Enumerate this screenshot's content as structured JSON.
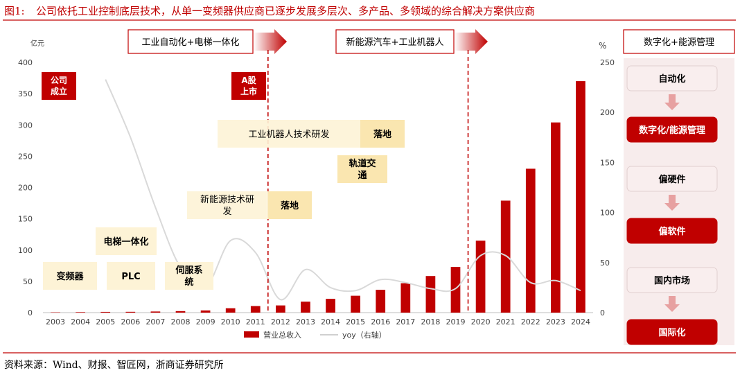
{
  "figure_label": "图1:",
  "figure_title": "公司依托工业控制底层技术，从单一变频器供应商已逐步发展多层次、多产品、多领域的综合解决方案供应商",
  "source": "资料来源：Wind、财报、智匠网，浙商证券研究所",
  "top_banners": [
    "工业自动化+电梯一体化",
    "新能源汽车+工业机器人"
  ],
  "annotations": {
    "company_founded": "公司\n成立",
    "a_share_listing": "A股\n上市",
    "industrial_robot_rd": "工业机器人技术研发",
    "landing_1": "落地",
    "rail_transit": "轨道交\n通",
    "new_energy_rd": "新能源技术研\n发",
    "landing_2": "落地",
    "elevator": "电梯一体化",
    "inverter": "变频器",
    "plc": "PLC",
    "servo": "伺服系\n统"
  },
  "right_panel": {
    "header": "数字化+能源管理",
    "items": [
      {
        "label": "自动化",
        "style": "light"
      },
      {
        "label": "数字化/能源管理",
        "style": "dark"
      },
      {
        "label": "偏硬件",
        "style": "light"
      },
      {
        "label": "偏软件",
        "style": "dark"
      },
      {
        "label": "国内市场",
        "style": "light"
      },
      {
        "label": "国际化",
        "style": "dark"
      }
    ]
  },
  "colors": {
    "bar": "#c00000",
    "line": "#d9d9d9",
    "accent": "#c00000",
    "tan": "#fdf3d6",
    "pink": "#f7ecec"
  },
  "chart_data": {
    "type": "bar",
    "categories": [
      "2003",
      "2004",
      "2005",
      "2006",
      "2007",
      "2008",
      "2009",
      "2010",
      "2011",
      "2012",
      "2013",
      "2014",
      "2015",
      "2016",
      "2017",
      "2018",
      "2019",
      "2020",
      "2021",
      "2022",
      "2023",
      "2024"
    ],
    "series": [
      {
        "name": "营业总收入",
        "type": "bar",
        "axis": "left",
        "values": [
          0.5,
          0.8,
          1.2,
          1.3,
          1.8,
          2.4,
          3.5,
          7,
          10.5,
          11.5,
          17.5,
          22,
          27,
          36.5,
          47,
          58.5,
          73,
          115,
          179,
          230,
          304,
          370
        ]
      },
      {
        "name": "yoy（右轴）",
        "type": "line",
        "axis": "right",
        "values": [
          null,
          null,
          233,
          175,
          105,
          45,
          25,
          72,
          60,
          13,
          43,
          25,
          22,
          33,
          30,
          24,
          24,
          57,
          57,
          30,
          32,
          22
        ]
      }
    ],
    "yleft_unit": "亿元",
    "yleft_ticks": [
      0,
      50,
      100,
      150,
      200,
      250,
      300,
      350,
      400
    ],
    "ylim_left": [
      0,
      400
    ],
    "yright_unit": "%",
    "yright_ticks": [
      0,
      50,
      100,
      150,
      200,
      250
    ],
    "ylim_right": [
      0,
      250
    ],
    "dividers_after": [
      "2011",
      "2019"
    ],
    "legend_position": "bottom",
    "grid": false
  }
}
